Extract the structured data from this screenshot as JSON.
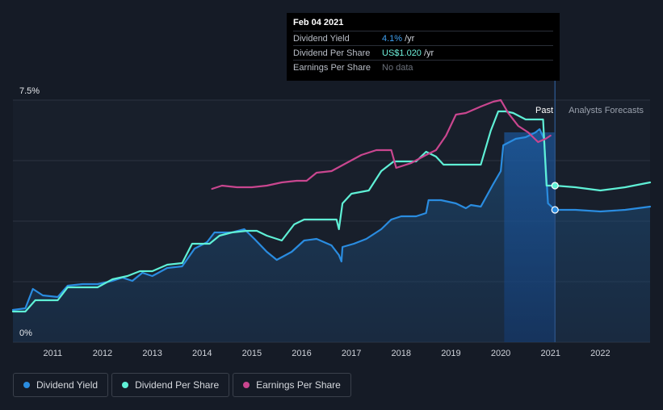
{
  "tooltip": {
    "date": "Feb 04 2021",
    "rows": [
      {
        "name": "Dividend Yield",
        "value": "4.1%",
        "unit": "/yr"
      },
      {
        "name": "Dividend Per Share",
        "value": "US$1.020",
        "unit": "/yr"
      },
      {
        "name": "Earnings Per Share",
        "value": "No data",
        "unit": ""
      }
    ]
  },
  "labels": {
    "past": "Past",
    "forecast": "Analysts Forecasts"
  },
  "legend": [
    {
      "label": "Dividend Yield",
      "color": "#2a8ce0"
    },
    {
      "label": "Dividend Per Share",
      "color": "#5ff0d6"
    },
    {
      "label": "Earnings Per Share",
      "color": "#c9468f"
    }
  ],
  "chart_data": {
    "type": "line",
    "x_ticks": [
      "2011",
      "2012",
      "2013",
      "2014",
      "2015",
      "2016",
      "2017",
      "2018",
      "2019",
      "2020",
      "2021",
      "2022"
    ],
    "y_ticks": [
      "0%",
      "7.5%"
    ],
    "ylim": [
      0,
      7.5
    ],
    "xlim": [
      2010.2,
      2023.0
    ],
    "current_date": 2021.09,
    "series": [
      {
        "name": "Dividend Yield",
        "color": "#2a8ce0",
        "points": [
          [
            2010.2,
            1.0
          ],
          [
            2010.45,
            1.05
          ],
          [
            2010.6,
            1.65
          ],
          [
            2010.8,
            1.45
          ],
          [
            2011.1,
            1.4
          ],
          [
            2011.3,
            1.75
          ],
          [
            2011.6,
            1.8
          ],
          [
            2011.9,
            1.8
          ],
          [
            2012.2,
            1.9
          ],
          [
            2012.4,
            2.0
          ],
          [
            2012.6,
            1.9
          ],
          [
            2012.8,
            2.15
          ],
          [
            2013.0,
            2.05
          ],
          [
            2013.3,
            2.3
          ],
          [
            2013.6,
            2.35
          ],
          [
            2013.85,
            2.9
          ],
          [
            2014.1,
            3.1
          ],
          [
            2014.25,
            3.4
          ],
          [
            2014.6,
            3.4
          ],
          [
            2014.85,
            3.5
          ],
          [
            2015.05,
            3.2
          ],
          [
            2015.3,
            2.8
          ],
          [
            2015.5,
            2.55
          ],
          [
            2015.8,
            2.8
          ],
          [
            2016.05,
            3.15
          ],
          [
            2016.3,
            3.2
          ],
          [
            2016.6,
            3.0
          ],
          [
            2016.75,
            2.7
          ],
          [
            2016.8,
            2.5
          ],
          [
            2016.82,
            2.95
          ],
          [
            2017.05,
            3.05
          ],
          [
            2017.3,
            3.2
          ],
          [
            2017.6,
            3.5
          ],
          [
            2017.8,
            3.8
          ],
          [
            2018.0,
            3.9
          ],
          [
            2018.3,
            3.9
          ],
          [
            2018.5,
            4.0
          ],
          [
            2018.55,
            4.4
          ],
          [
            2018.8,
            4.4
          ],
          [
            2019.1,
            4.3
          ],
          [
            2019.3,
            4.15
          ],
          [
            2019.4,
            4.25
          ],
          [
            2019.6,
            4.2
          ],
          [
            2019.85,
            4.9
          ],
          [
            2020.0,
            5.3
          ],
          [
            2020.05,
            6.1
          ],
          [
            2020.3,
            6.3
          ],
          [
            2020.5,
            6.35
          ],
          [
            2020.7,
            6.5
          ],
          [
            2020.78,
            6.6
          ],
          [
            2020.87,
            6.3
          ],
          [
            2020.95,
            4.3
          ],
          [
            2021.09,
            4.1
          ],
          [
            2021.5,
            4.1
          ],
          [
            2022.0,
            4.05
          ],
          [
            2022.5,
            4.1
          ],
          [
            2023.0,
            4.2
          ]
        ]
      },
      {
        "name": "Dividend Per Share",
        "color": "#5ff0d6",
        "points": [
          [
            2010.2,
            0.95
          ],
          [
            2010.45,
            0.95
          ],
          [
            2010.65,
            1.3
          ],
          [
            2011.1,
            1.3
          ],
          [
            2011.3,
            1.7
          ],
          [
            2011.6,
            1.7
          ],
          [
            2011.9,
            1.7
          ],
          [
            2012.2,
            1.95
          ],
          [
            2012.5,
            2.05
          ],
          [
            2012.75,
            2.2
          ],
          [
            2013.0,
            2.2
          ],
          [
            2013.3,
            2.4
          ],
          [
            2013.6,
            2.45
          ],
          [
            2013.8,
            3.05
          ],
          [
            2014.15,
            3.05
          ],
          [
            2014.35,
            3.3
          ],
          [
            2014.6,
            3.4
          ],
          [
            2014.9,
            3.45
          ],
          [
            2015.1,
            3.45
          ],
          [
            2015.3,
            3.3
          ],
          [
            2015.6,
            3.15
          ],
          [
            2015.85,
            3.65
          ],
          [
            2016.05,
            3.8
          ],
          [
            2016.3,
            3.8
          ],
          [
            2016.7,
            3.8
          ],
          [
            2016.75,
            3.5
          ],
          [
            2016.82,
            4.3
          ],
          [
            2017.0,
            4.6
          ],
          [
            2017.35,
            4.7
          ],
          [
            2017.6,
            5.3
          ],
          [
            2017.85,
            5.6
          ],
          [
            2018.0,
            5.6
          ],
          [
            2018.3,
            5.6
          ],
          [
            2018.5,
            5.9
          ],
          [
            2018.7,
            5.75
          ],
          [
            2018.85,
            5.5
          ],
          [
            2019.1,
            5.5
          ],
          [
            2019.6,
            5.5
          ],
          [
            2019.8,
            6.55
          ],
          [
            2019.95,
            7.15
          ],
          [
            2020.1,
            7.15
          ],
          [
            2020.25,
            7.1
          ],
          [
            2020.5,
            6.9
          ],
          [
            2020.85,
            6.9
          ],
          [
            2020.92,
            4.85
          ],
          [
            2021.09,
            4.85
          ],
          [
            2021.5,
            4.8
          ],
          [
            2022.0,
            4.7
          ],
          [
            2022.5,
            4.8
          ],
          [
            2023.0,
            4.95
          ]
        ]
      },
      {
        "name": "Earnings Per Share",
        "color": "#c9468f",
        "points": [
          [
            2014.2,
            4.75
          ],
          [
            2014.4,
            4.85
          ],
          [
            2014.7,
            4.8
          ],
          [
            2015.0,
            4.8
          ],
          [
            2015.3,
            4.85
          ],
          [
            2015.6,
            4.95
          ],
          [
            2015.9,
            5.0
          ],
          [
            2016.1,
            5.0
          ],
          [
            2016.3,
            5.25
          ],
          [
            2016.6,
            5.3
          ],
          [
            2016.9,
            5.55
          ],
          [
            2017.2,
            5.8
          ],
          [
            2017.5,
            5.95
          ],
          [
            2017.8,
            5.95
          ],
          [
            2017.9,
            5.4
          ],
          [
            2018.2,
            5.55
          ],
          [
            2018.5,
            5.8
          ],
          [
            2018.7,
            5.95
          ],
          [
            2018.9,
            6.4
          ],
          [
            2019.1,
            7.05
          ],
          [
            2019.3,
            7.1
          ],
          [
            2019.6,
            7.3
          ],
          [
            2019.85,
            7.45
          ],
          [
            2020.0,
            7.5
          ],
          [
            2020.15,
            7.1
          ],
          [
            2020.35,
            6.7
          ],
          [
            2020.55,
            6.5
          ],
          [
            2020.75,
            6.2
          ],
          [
            2020.9,
            6.3
          ],
          [
            2021.0,
            6.4
          ]
        ]
      }
    ]
  }
}
